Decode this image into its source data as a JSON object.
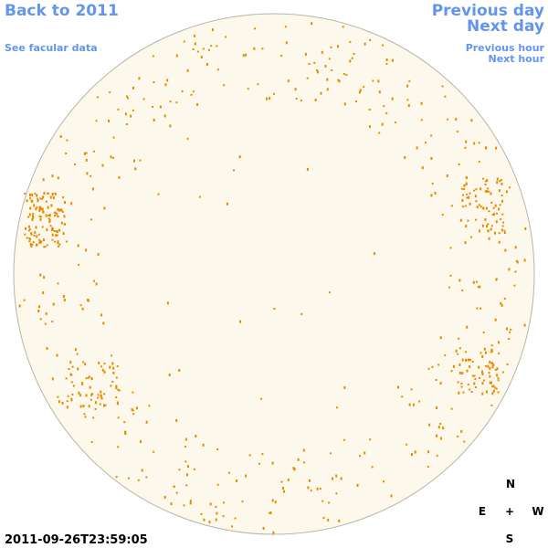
{
  "links": {
    "back": "Back to 2011",
    "facular": "See facular data",
    "previous_day": "Previous day",
    "next_day": "Next day",
    "previous_hour": "Previous hour",
    "next_hour": "Next hour"
  },
  "compass": {
    "north": "N",
    "east": "E",
    "center": "+",
    "west": "W",
    "south": "S"
  },
  "timestamp": "2011-09-26T23:59:05"
}
